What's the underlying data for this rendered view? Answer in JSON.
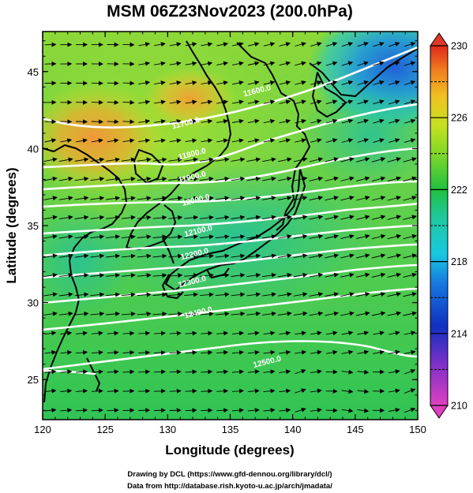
{
  "chart_data": {
    "type": "heatmap",
    "title": "MSM 06Z23Nov2023 (200.0hPa)",
    "xlabel": "Longitude (degrees)",
    "ylabel": "Latitude  (degrees)",
    "xlim": [
      120,
      150
    ],
    "ylim": [
      22.4,
      47.6
    ],
    "xticks": [
      120,
      125,
      130,
      135,
      140,
      145,
      150
    ],
    "yticks": [
      25,
      30,
      35,
      40,
      45
    ],
    "colorbar": {
      "range": [
        210,
        230
      ],
      "ticks": [
        210,
        214,
        218,
        222,
        226,
        230
      ],
      "dashed_ticks": [
        212,
        216,
        220,
        224,
        228
      ],
      "colors": [
        "#e040c0",
        "#1030c0",
        "#18c8e0",
        "#20c040",
        "#b8e020",
        "#f08020",
        "#e02818"
      ]
    },
    "temperature_field_samples": [
      {
        "lon": 120,
        "lat": 47,
        "value": 222.5
      },
      {
        "lon": 124,
        "lat": 40,
        "value": 225.5
      },
      {
        "lon": 132,
        "lat": 43,
        "value": 225
      },
      {
        "lon": 145,
        "lat": 46,
        "value": 217
      },
      {
        "lon": 150,
        "lat": 46,
        "value": 215.5
      },
      {
        "lon": 135,
        "lat": 35,
        "value": 221.5
      },
      {
        "lon": 122,
        "lat": 30,
        "value": 221
      },
      {
        "lon": 140,
        "lat": 25,
        "value": 222
      }
    ],
    "contour_labels": [
      {
        "text": "11700.0",
        "lon": 131.5,
        "lat": 41.5
      },
      {
        "text": "11800.0",
        "lon": 132,
        "lat": 39.5
      },
      {
        "text": "11900.0",
        "lon": 132,
        "lat": 38
      },
      {
        "text": "12000.0",
        "lon": 132.3,
        "lat": 36.5
      },
      {
        "text": "12100.0",
        "lon": 132.5,
        "lat": 34.5
      },
      {
        "text": "12200.0",
        "lon": 132.2,
        "lat": 33
      },
      {
        "text": "12300.0",
        "lon": 132,
        "lat": 31.2
      },
      {
        "text": "12400.0",
        "lon": 132.5,
        "lat": 29.2
      },
      {
        "text": "12500.0",
        "lon": 138,
        "lat": 26
      },
      {
        "text": "11600.0",
        "lon": 137.2,
        "lat": 43.6
      }
    ],
    "wind": {
      "direction": "westerly to west-southwesterly",
      "grid_spacing_deg": 1.25
    }
  },
  "credits": {
    "line1": "Drawing by DCL (https://www.gfd-dennou.org/library/dcl/)",
    "line2": "Data from http://database.rish.kyoto-u.ac.jp/arch/jmadata/"
  }
}
